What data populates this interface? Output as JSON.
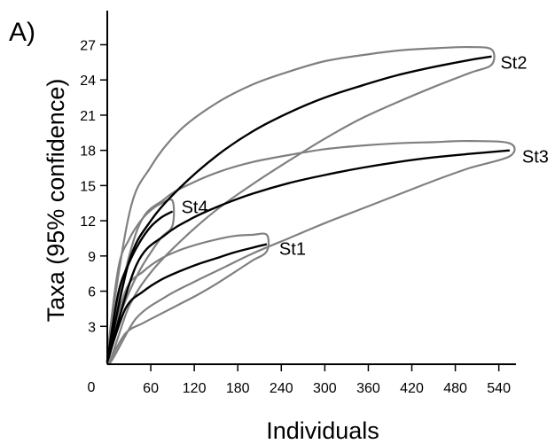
{
  "chart_data": {
    "type": "line",
    "panel_label": "A)",
    "title": "",
    "xlabel": "Individuals",
    "ylabel": "Taxa (95% confidence)",
    "xlim": [
      0,
      560
    ],
    "ylim": [
      0,
      29
    ],
    "x_ticks": [
      60,
      120,
      180,
      240,
      300,
      360,
      420,
      480,
      540
    ],
    "y_ticks": [
      3,
      6,
      9,
      12,
      15,
      18,
      21,
      24,
      27
    ],
    "origin_label": "0",
    "grid": false,
    "legend": "none",
    "colors": {
      "curve": "#000000",
      "confidence": "#808080",
      "axis": "#000000"
    },
    "series": [
      {
        "name": "St2",
        "x": [
          0,
          30,
          60,
          100,
          150,
          200,
          250,
          300,
          350,
          400,
          450,
          500,
          530
        ],
        "y": [
          0,
          8.5,
          12,
          14.8,
          17.5,
          19.6,
          21.2,
          22.5,
          23.5,
          24.4,
          25.1,
          25.7,
          26
        ],
        "upper": [
          0,
          12.5,
          16.6,
          19.7,
          22.0,
          23.6,
          24.7,
          25.6,
          26.1,
          26.5,
          26.7,
          26.8,
          26.6
        ],
        "lower": [
          0,
          4.7,
          7.6,
          10.2,
          12.9,
          15.1,
          17.1,
          19.0,
          20.7,
          22.1,
          23.4,
          24.6,
          25.3
        ]
      },
      {
        "name": "St3",
        "x": [
          0,
          40,
          80,
          120,
          160,
          200,
          250,
          300,
          350,
          400,
          450,
          500,
          555
        ],
        "y": [
          0,
          8.2,
          10.8,
          12.3,
          13.4,
          14.3,
          15.2,
          15.9,
          16.5,
          17.0,
          17.4,
          17.7,
          18
        ],
        "upper": [
          0,
          11.0,
          13.9,
          15.3,
          16.3,
          17.0,
          17.6,
          18.1,
          18.4,
          18.6,
          18.7,
          18.8,
          18.6
        ],
        "lower": [
          0,
          3.7,
          5.5,
          6.8,
          8.0,
          9.2,
          10.5,
          11.8,
          13.0,
          14.2,
          15.4,
          16.5,
          17.5
        ]
      },
      {
        "name": "St4",
        "x": [
          0,
          15,
          30,
          45,
          60,
          75,
          90
        ],
        "y": [
          0,
          5.8,
          8.4,
          10.2,
          11.5,
          12.3,
          12.8
        ],
        "upper": [
          0,
          7.9,
          10.4,
          11.9,
          12.9,
          13.5,
          13.7
        ],
        "lower": [
          0,
          3.5,
          5.9,
          7.8,
          9.3,
          10.6,
          11.6
        ]
      },
      {
        "name": "St1",
        "x": [
          0,
          25,
          50,
          75,
          100,
          125,
          150,
          175,
          200,
          220
        ],
        "y": [
          0,
          4.5,
          6.0,
          7.0,
          7.7,
          8.3,
          8.8,
          9.3,
          9.7,
          10.0
        ],
        "upper": [
          0,
          6.0,
          7.7,
          8.8,
          9.5,
          10.0,
          10.4,
          10.7,
          10.8,
          10.8
        ],
        "lower": [
          0,
          2.4,
          3.3,
          4.1,
          4.9,
          5.7,
          6.6,
          7.6,
          8.6,
          9.4
        ]
      }
    ]
  }
}
